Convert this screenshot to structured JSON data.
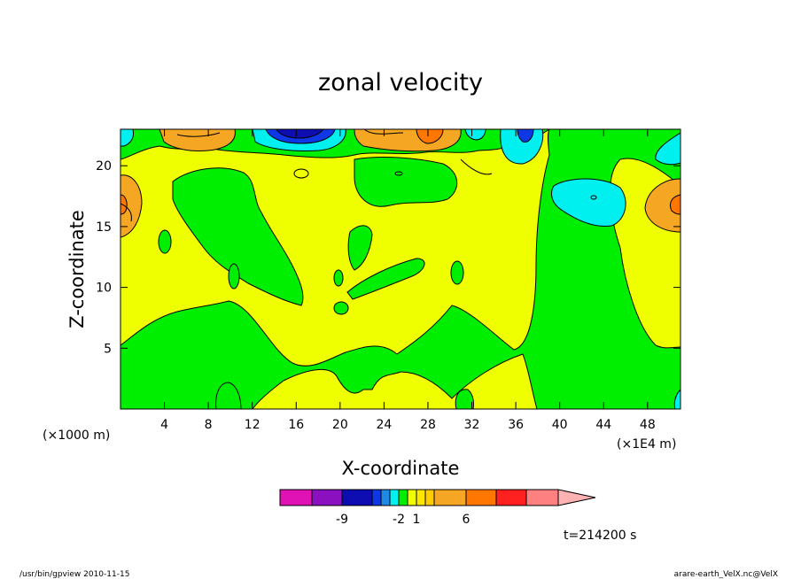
{
  "chart_data": {
    "type": "heatmap",
    "title": "zonal velocity",
    "xlabel": "X-coordinate",
    "ylabel": "Z-coordinate",
    "x_unit_left": "(×1000 m)",
    "x_unit_right": "(×1E4 m)",
    "xlim": [
      0,
      51
    ],
    "ylim": [
      0,
      23
    ],
    "xticks": [
      4,
      8,
      12,
      16,
      20,
      24,
      28,
      32,
      36,
      40,
      44,
      48
    ],
    "yticks": [
      5,
      10,
      15,
      20
    ],
    "colors": {
      "c_m9": "#e011b5",
      "c_m7": "#8a10c0",
      "c_m5": "#0d0db2",
      "c_m3": "#0e38e6",
      "c_m2": "#1e8ae6",
      "c_m1": "#00f0f0",
      "c_0": "#00ee00",
      "c_1": "#f0ff00",
      "c_2": "#ffe600",
      "c_3": "#ffcc00",
      "c_4": "#f5a623",
      "c_6": "#ff7700",
      "c_8": "#ff2020",
      "c_10": "#ff8080",
      "c_12": "#ffb2b2"
    },
    "colorbar": {
      "tick_labels": [
        "-9",
        "-2",
        "1",
        "6"
      ]
    },
    "annotation": "t=214200 s"
  },
  "footer": {
    "left": "/usr/bin/gpview   2010-11-15",
    "right": "arare-earth_VelX.nc@VelX"
  }
}
